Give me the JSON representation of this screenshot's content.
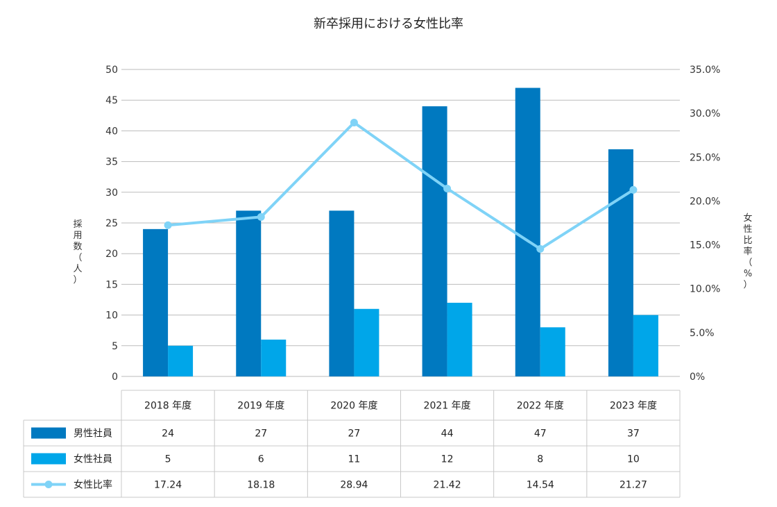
{
  "chart_data": {
    "type": "bar",
    "title": "新卒採用における女性比率",
    "ylabel": "採用数（人）",
    "y2label": "女性比率（%）",
    "categories": [
      "2018 年度",
      "2019 年度",
      "2020 年度",
      "2021 年度",
      "2022 年度",
      "2023 年度"
    ],
    "ylim": [
      0,
      50
    ],
    "yticks": [
      0,
      5,
      10,
      15,
      20,
      25,
      30,
      35,
      40,
      45,
      50
    ],
    "y2lim": [
      0,
      35
    ],
    "y2ticks": [
      "0%",
      "5.0%",
      "10.0%",
      "15.0%",
      "20.0%",
      "25.0%",
      "30.0%",
      "35.0%"
    ],
    "y2tick_values": [
      0,
      5,
      10,
      15,
      20,
      25,
      30,
      35
    ],
    "grid": true,
    "series": [
      {
        "name": "男性社員",
        "kind": "bar",
        "axis": "left",
        "color": "#0079C0",
        "values": [
          24,
          27,
          27,
          44,
          47,
          37
        ],
        "table_values": [
          "24",
          "27",
          "27",
          "44",
          "47",
          "37"
        ]
      },
      {
        "name": "女性社員",
        "kind": "bar",
        "axis": "left",
        "color": "#00A6E9",
        "values": [
          5,
          6,
          11,
          12,
          8,
          10
        ],
        "table_values": [
          "5",
          "6",
          "11",
          "12",
          "8",
          "10"
        ]
      },
      {
        "name": "女性比率",
        "kind": "line",
        "axis": "right",
        "color": "#7FD3F7",
        "values": [
          17.24,
          18.18,
          28.94,
          21.42,
          14.54,
          21.27
        ],
        "table_values": [
          "17.24",
          "18.18",
          "28.94",
          "21.42",
          "14.54",
          "21.27"
        ]
      }
    ]
  },
  "colors": {
    "grid": "#bbbbbb",
    "table_border": "#c8c8c8",
    "text": "#222222"
  }
}
